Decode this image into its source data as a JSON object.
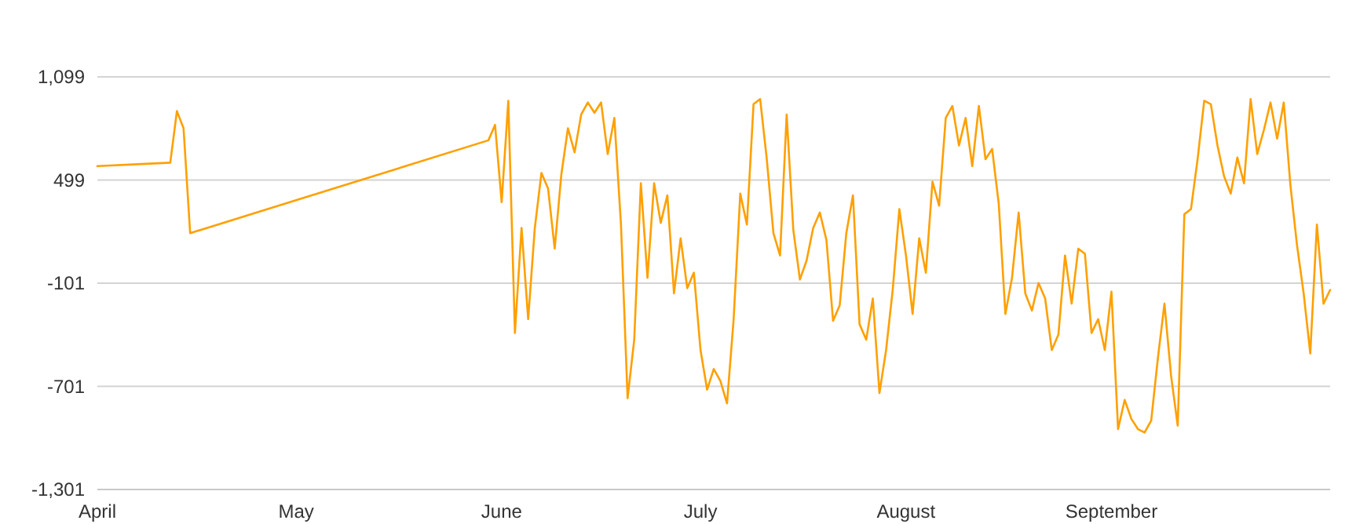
{
  "chart_data": {
    "type": "line",
    "color": "#ffa000",
    "grid": "y",
    "marker": "none",
    "line_style": "solid",
    "xlim": [
      "--04-01",
      "--10-04"
    ],
    "xticks": [
      {
        "value": "--04-01",
        "label": "April"
      },
      {
        "value": "--05-01",
        "label": "May"
      },
      {
        "value": "--06-01",
        "label": "June"
      },
      {
        "value": "--07-01",
        "label": "July"
      },
      {
        "value": "--08-01",
        "label": "August"
      },
      {
        "value": "--09-01",
        "label": "September"
      }
    ],
    "ylim": [
      -1301,
      1099
    ],
    "yticks": [
      {
        "value": 1099,
        "label": "1,099"
      },
      {
        "value": 499,
        "label": "499"
      },
      {
        "value": -101,
        "label": "-101"
      },
      {
        "value": -701,
        "label": "-701"
      },
      {
        "value": -1301,
        "label": "-1,301"
      }
    ],
    "x": [
      "--04-01",
      "--04-12",
      "--04-13",
      "--04-14",
      "--04-15",
      "--05-30",
      "--05-31",
      "--06-01",
      "--06-02",
      "--06-03",
      "--06-04",
      "--06-05",
      "--06-06",
      "--06-07",
      "--06-08",
      "--06-09",
      "--06-10",
      "--06-11",
      "--06-12",
      "--06-13",
      "--06-14",
      "--06-15",
      "--06-16",
      "--06-17",
      "--06-18",
      "--06-19",
      "--06-20",
      "--06-21",
      "--06-22",
      "--06-23",
      "--06-24",
      "--06-25",
      "--06-26",
      "--06-27",
      "--06-28",
      "--06-29",
      "--06-30",
      "--07-01",
      "--07-02",
      "--07-03",
      "--07-04",
      "--07-05",
      "--07-06",
      "--07-07",
      "--07-08",
      "--07-09",
      "--07-10",
      "--07-11",
      "--07-12",
      "--07-13",
      "--07-14",
      "--07-15",
      "--07-16",
      "--07-17",
      "--07-18",
      "--07-19",
      "--07-20",
      "--07-21",
      "--07-22",
      "--07-23",
      "--07-24",
      "--07-25",
      "--07-26",
      "--07-27",
      "--07-28",
      "--07-29",
      "--07-30",
      "--07-31",
      "--08-01",
      "--08-02",
      "--08-03",
      "--08-04",
      "--08-05",
      "--08-06",
      "--08-07",
      "--08-08",
      "--08-09",
      "--08-10",
      "--08-11",
      "--08-12",
      "--08-13",
      "--08-14",
      "--08-15",
      "--08-16",
      "--08-17",
      "--08-18",
      "--08-19",
      "--08-20",
      "--08-21",
      "--08-22",
      "--08-23",
      "--08-24",
      "--08-25",
      "--08-26",
      "--08-27",
      "--08-28",
      "--08-29",
      "--08-30",
      "--08-31",
      "--09-01",
      "--09-02",
      "--09-03",
      "--09-04",
      "--09-05",
      "--09-06",
      "--09-07",
      "--09-08",
      "--09-09",
      "--09-10",
      "--09-11",
      "--09-12",
      "--09-13",
      "--09-14",
      "--09-15",
      "--09-16",
      "--09-17",
      "--09-18",
      "--09-19",
      "--09-20",
      "--09-21",
      "--09-22",
      "--09-23",
      "--09-24",
      "--09-25",
      "--09-26",
      "--09-27",
      "--09-28",
      "--09-29",
      "--09-30",
      "--10-01",
      "--10-02",
      "--10-03",
      "--10-04"
    ],
    "values": [
      580,
      600,
      900,
      800,
      190,
      730,
      820,
      370,
      960,
      -390,
      220,
      -310,
      220,
      540,
      450,
      100,
      530,
      800,
      660,
      880,
      950,
      890,
      950,
      650,
      860,
      240,
      -770,
      -430,
      480,
      -70,
      480,
      250,
      410,
      -160,
      160,
      -130,
      -40,
      -490,
      -720,
      -600,
      -670,
      -800,
      -310,
      420,
      240,
      940,
      970,
      620,
      190,
      60,
      880,
      210,
      -80,
      30,
      220,
      310,
      150,
      -320,
      -230,
      190,
      410,
      -340,
      -430,
      -190,
      -740,
      -490,
      -140,
      330,
      60,
      -280,
      160,
      -40,
      490,
      350,
      860,
      930,
      700,
      860,
      580,
      930,
      620,
      680,
      360,
      -280,
      -70,
      310,
      -160,
      -260,
      -100,
      -190,
      -490,
      -400,
      60,
      -220,
      100,
      70,
      -390,
      -310,
      -490,
      -150,
      -950,
      -780,
      -890,
      -950,
      -970,
      -900,
      -540,
      -220,
      -640,
      -930,
      300,
      330,
      620,
      960,
      940,
      700,
      520,
      420,
      630,
      480,
      970,
      650,
      790,
      950,
      740,
      950,
      470,
      120,
      -160,
      -510,
      240,
      -220,
      -140
    ]
  }
}
